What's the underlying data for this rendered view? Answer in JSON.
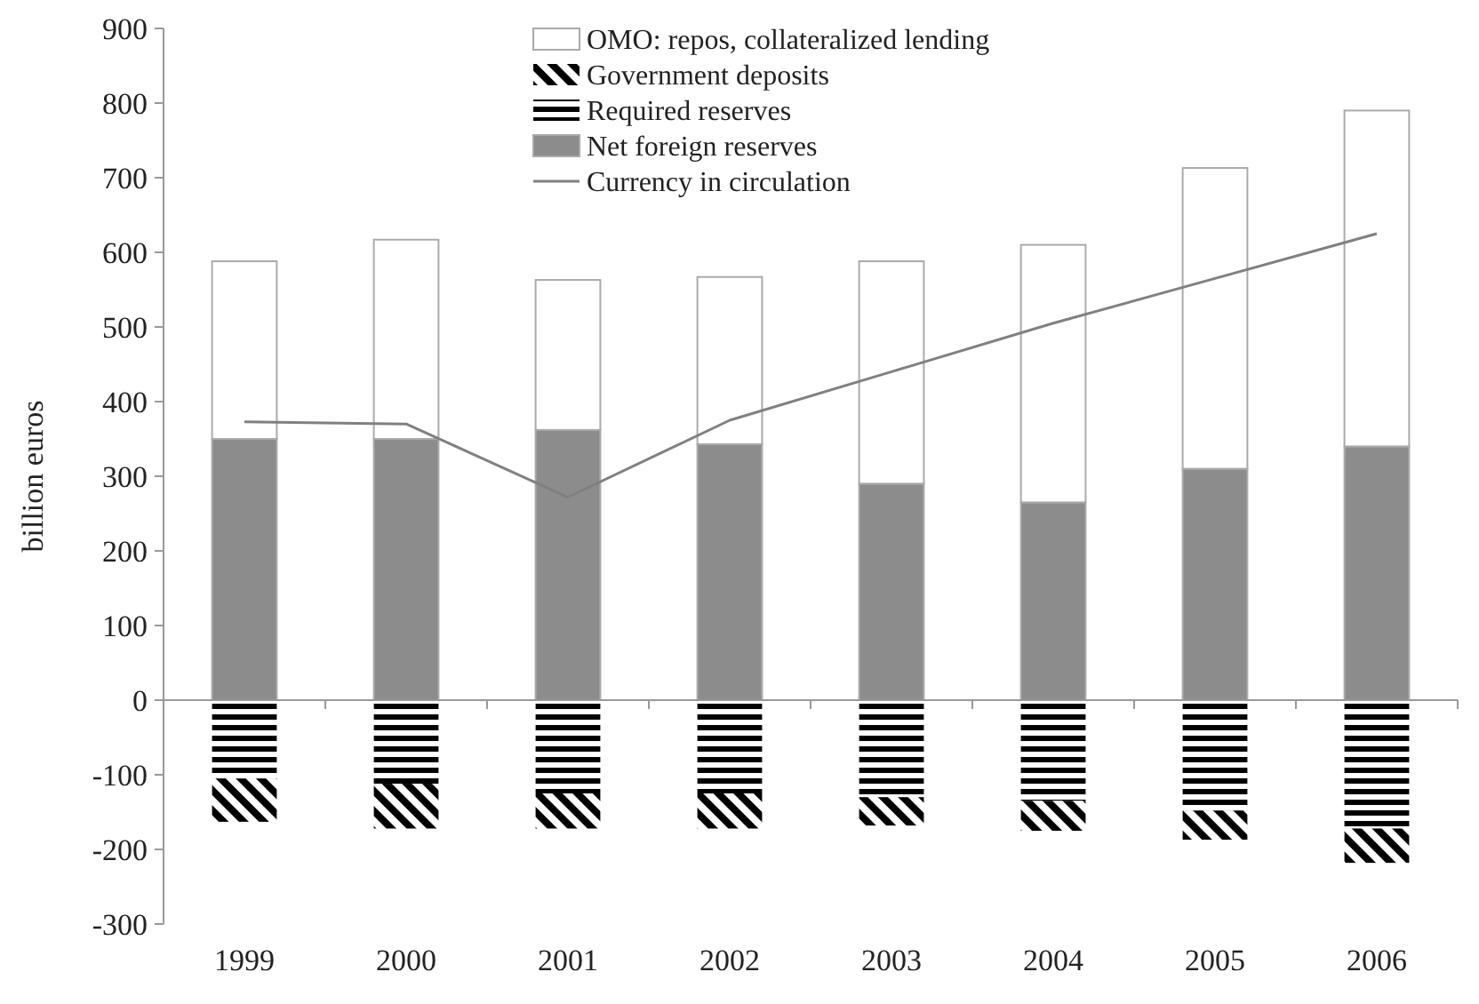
{
  "chart_data": {
    "type": "bar",
    "stacked": true,
    "ylabel": "billion euros",
    "categories": [
      "1999",
      "2000",
      "2001",
      "2002",
      "2003",
      "2004",
      "2005",
      "2006"
    ],
    "series": [
      {
        "name": "Net foreign reserves",
        "color": "#8c8c8c",
        "values": [
          350,
          350,
          362,
          343,
          290,
          265,
          310,
          340
        ]
      },
      {
        "name": "OMO: repos, collateralized lending",
        "color": "#ffffff",
        "values": [
          238,
          267,
          201,
          224,
          298,
          345,
          403,
          450
        ]
      },
      {
        "name": "Required reserves",
        "color": "#000000",
        "values": [
          -105,
          -112,
          -125,
          -125,
          -130,
          -135,
          -148,
          -172
        ]
      },
      {
        "name": "Government deposits",
        "color": "#000000",
        "values": [
          -58,
          -60,
          -47,
          -47,
          -38,
          -40,
          -39,
          -46
        ]
      },
      {
        "name": "Currency in circulation",
        "type": "line",
        "color": "#808080",
        "values": [
          373,
          370,
          272,
          375,
          440,
          505,
          565,
          625
        ]
      }
    ],
    "ylim": [
      -300,
      900
    ],
    "yticks": [
      -300,
      -200,
      -100,
      0,
      100,
      200,
      300,
      400,
      500,
      600,
      700,
      800,
      900
    ],
    "legend": "top",
    "marker": "none",
    "line_style": "solid"
  }
}
